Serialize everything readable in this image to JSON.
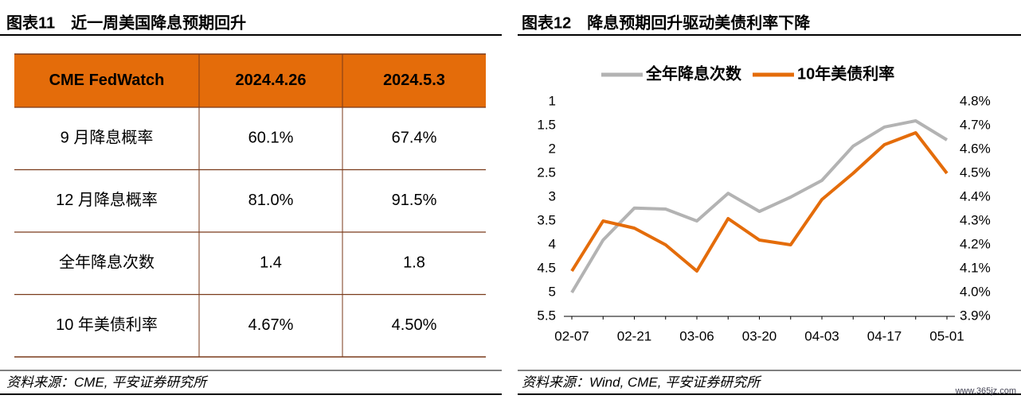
{
  "left_panel": {
    "title": "图表11　近一周美国降息预期回升",
    "table": {
      "header": [
        "CME FedWatch",
        "2024.4.26",
        "2024.5.3"
      ],
      "rows": [
        [
          "9 月降息概率",
          "60.1%",
          "67.4%"
        ],
        [
          "12 月降息概率",
          "81.0%",
          "91.5%"
        ],
        [
          "全年降息次数",
          "1.4",
          "1.8"
        ],
        [
          "10 年美债利率",
          "4.67%",
          "4.50%"
        ]
      ]
    },
    "source": "资料来源：CME, 平安证券研究所"
  },
  "chart_data": {
    "type": "line",
    "title": "图表12　降息预期回升驱动美债利率下降",
    "categories": [
      "02-07",
      null,
      "02-21",
      null,
      "03-06",
      null,
      "03-20",
      null,
      "04-03",
      null,
      "04-17",
      null,
      "05-01"
    ],
    "series": [
      {
        "name": "全年降息次数",
        "color": "#b3b3b3",
        "values": [
          5.0,
          3.9,
          3.23,
          3.25,
          3.5,
          2.92,
          3.3,
          3.0,
          2.65,
          1.93,
          1.53,
          1.4,
          1.8
        ]
      },
      {
        "name": "10年美债利率",
        "color": "#e46c0a",
        "axis": "y2",
        "values": [
          4.09,
          4.3,
          4.27,
          4.2,
          4.09,
          4.31,
          4.22,
          4.2,
          4.39,
          4.5,
          4.62,
          4.67,
          4.5
        ]
      }
    ],
    "ylim": [
      1,
      5.5
    ],
    "yticks": [
      1,
      1.5,
      2,
      2.5,
      3,
      3.5,
      4,
      4.5,
      5,
      5.5
    ],
    "y_inverted": true,
    "y2lim": [
      3.9,
      4.8
    ],
    "y2ticks": [
      {
        "value": 3.9,
        "label": "3.9%"
      },
      {
        "value": 4.0,
        "label": "4.0%"
      },
      {
        "value": 4.1,
        "label": "4.1%"
      },
      {
        "value": 4.2,
        "label": "4.2%"
      },
      {
        "value": 4.3,
        "label": "4.3%"
      },
      {
        "value": 4.4,
        "label": "4.4%"
      },
      {
        "value": 4.5,
        "label": "4.5%"
      },
      {
        "value": 4.6,
        "label": "4.6%"
      },
      {
        "value": 4.7,
        "label": "4.7%"
      },
      {
        "value": 4.8,
        "label": "4.8%"
      }
    ],
    "legend": "top",
    "source": "资料来源：Wind, CME, 平安证券研究所"
  },
  "watermark": "www.365jz.com"
}
